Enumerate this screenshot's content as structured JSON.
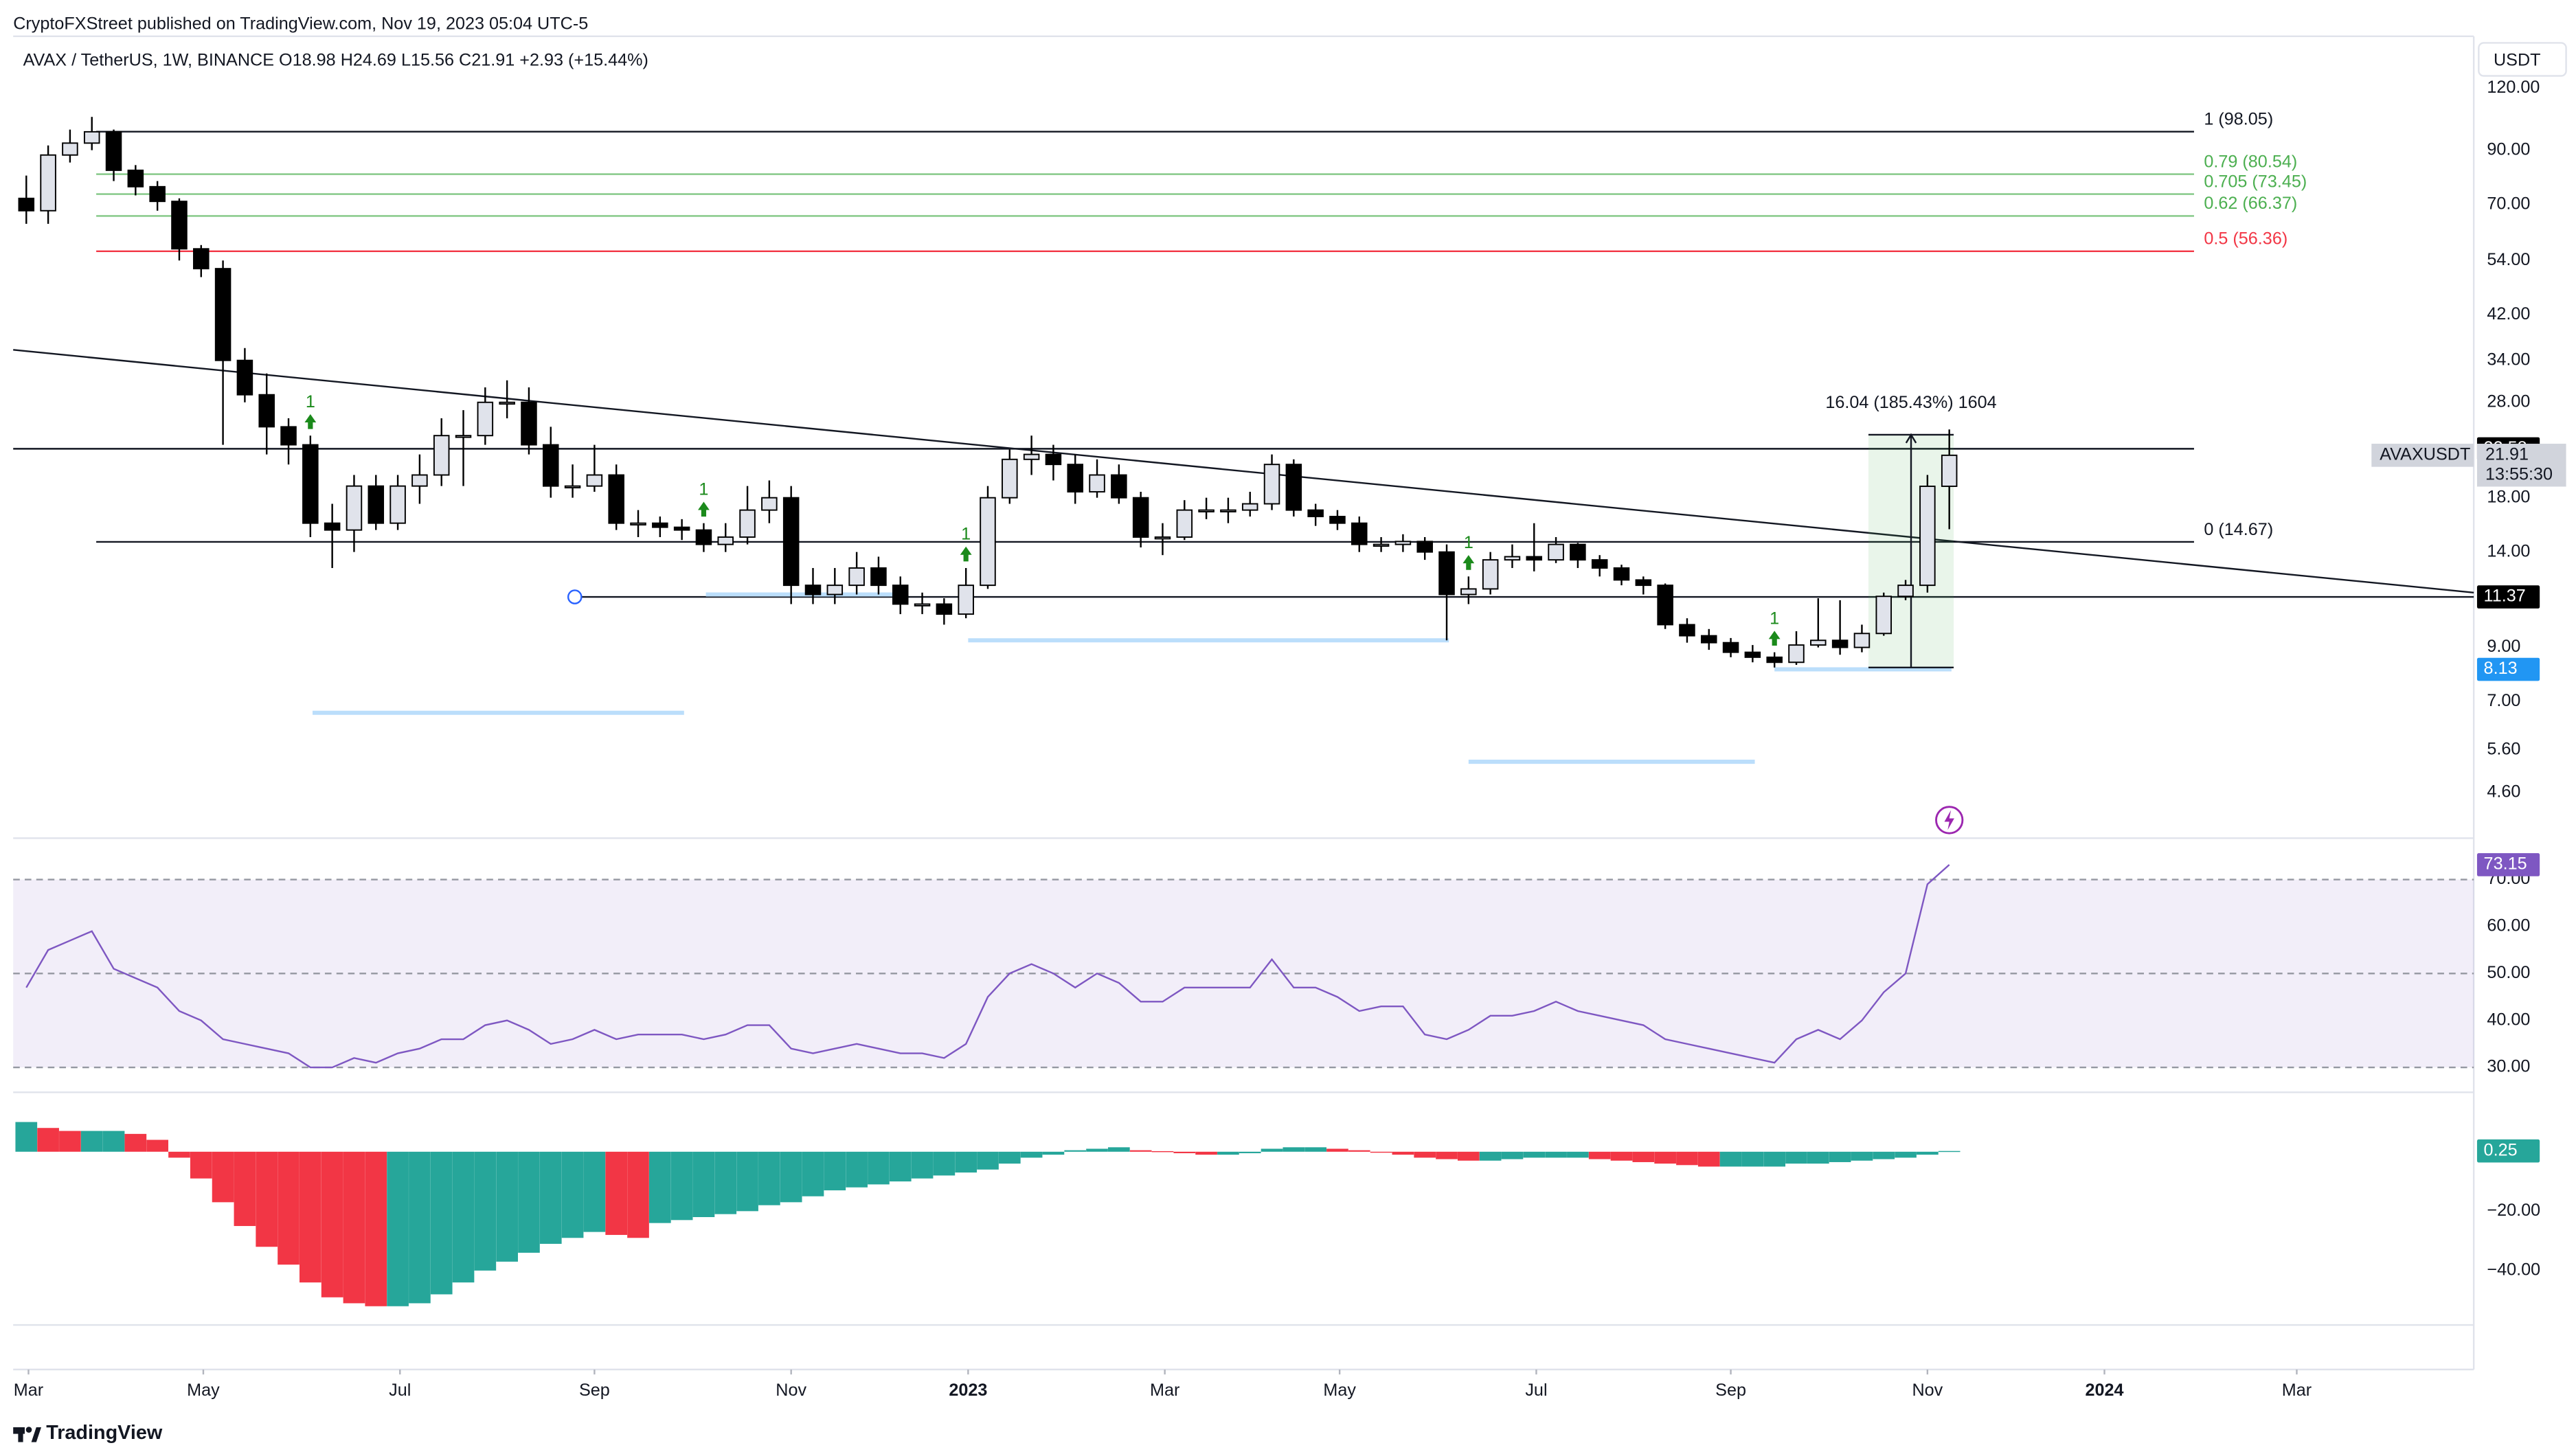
{
  "header": "CryptoFXStreet published on TradingView.com, Nov 19, 2023 05:04 UTC-5",
  "footer": "TradingView",
  "chart_data": [
    {
      "type": "candlestick",
      "title": "AVAX / TetherUS, 1W, BINANCE  O18.98  H24.69  L15.56  C21.91  +2.93 (+15.44%)",
      "currency": "USDT",
      "log_scale": true,
      "up_color": "#e0e3eb",
      "down_color": "#000000",
      "open": [
        72,
        68,
        88,
        93,
        98,
        82,
        76,
        71,
        57,
        52,
        34,
        29,
        25,
        23,
        16,
        15.5,
        19,
        16,
        19,
        20,
        24,
        24,
        28,
        28,
        23,
        19,
        19,
        20,
        16,
        16,
        15.7,
        15.5,
        14.5,
        15,
        17,
        18,
        12,
        11.5,
        12,
        13,
        12,
        11,
        11,
        10.5,
        12,
        18,
        21.5,
        22,
        21,
        18.5,
        20,
        18,
        15,
        15,
        17,
        17,
        17,
        17.5,
        21,
        17,
        16.5,
        16,
        14.5,
        14.5,
        14.7,
        14,
        11.5,
        11.8,
        13.5,
        13.7,
        13.5,
        14.5,
        13.5,
        13,
        12.3,
        12,
        10,
        9.5,
        9.2,
        8.8,
        8.6,
        8.4,
        9.1,
        9.3,
        9.0,
        9.6,
        11.4,
        12,
        18.98
      ],
      "high": [
        80,
        92,
        99,
        105,
        99,
        84,
        78,
        72,
        58,
        54,
        36,
        32,
        26,
        24,
        17.5,
        20,
        20,
        20,
        22,
        26,
        27,
        30,
        31,
        30,
        25,
        21,
        23,
        21,
        17,
        16.5,
        16.3,
        16,
        16,
        19,
        19.5,
        19,
        13,
        13,
        14,
        13.7,
        12.5,
        11.6,
        11.3,
        13,
        19,
        22.5,
        24,
        23,
        22,
        21.5,
        21,
        18.5,
        16,
        17.8,
        18,
        18,
        18.5,
        22,
        21.5,
        17.5,
        17,
        16.5,
        15,
        15.2,
        15,
        14.5,
        12.5,
        14,
        14.5,
        16,
        15,
        14.6,
        13.8,
        13.2,
        12.5,
        12.1,
        10.3,
        9.8,
        9.4,
        9.1,
        8.8,
        9.7,
        11.3,
        11.2,
        10,
        11.6,
        12.3,
        20,
        24.69
      ],
      "low": [
        64,
        64,
        85,
        90,
        78,
        73,
        68,
        54,
        50,
        23,
        28,
        22,
        21,
        15,
        13,
        14,
        15.5,
        15.5,
        17.5,
        19,
        19,
        23,
        26,
        22,
        18,
        18,
        18.5,
        15.5,
        15,
        15,
        14.8,
        14,
        14,
        14.5,
        16,
        11,
        11,
        11,
        11.5,
        11.5,
        10.5,
        10.5,
        10,
        10.3,
        11.8,
        17.5,
        20,
        19.5,
        17.5,
        18,
        17.5,
        14.3,
        13.8,
        14.8,
        16.3,
        16,
        16.5,
        17,
        16.5,
        15.8,
        15.5,
        14,
        14,
        14,
        13.5,
        9.3,
        11,
        11.5,
        13,
        12.8,
        13.3,
        13,
        12.5,
        12,
        11.5,
        9.8,
        9.2,
        8.9,
        8.6,
        8.4,
        8.2,
        8.3,
        9,
        8.7,
        8.8,
        9.5,
        11.2,
        11.6,
        15.56
      ],
      "close": [
        68,
        88,
        93,
        98,
        82,
        76,
        71,
        57,
        52,
        34,
        29,
        25,
        23,
        16,
        15.5,
        19,
        16,
        19,
        20,
        24,
        24,
        28,
        28,
        23,
        19,
        19,
        20,
        16,
        16,
        15.7,
        15.5,
        14.5,
        15,
        17,
        18,
        12,
        11.5,
        12,
        13,
        12,
        11,
        11,
        10.5,
        12,
        18,
        21.5,
        22,
        21,
        18.5,
        20,
        18,
        15,
        15,
        17,
        17,
        17,
        17.5,
        21,
        17,
        16.5,
        16,
        14.5,
        14.5,
        14.7,
        14,
        11.5,
        11.8,
        13.5,
        13.7,
        13.5,
        14.5,
        13.5,
        13,
        12.3,
        12,
        10,
        9.5,
        9.2,
        8.8,
        8.6,
        8.4,
        9.1,
        9.3,
        9.0,
        9.6,
        11.4,
        12,
        18.98,
        21.91
      ],
      "xlim": [
        -0.6,
        112
      ],
      "ylim": [
        3.72,
        152.5
      ],
      "xticks": [
        {
          "value": 0.1,
          "label": "Mar"
        },
        {
          "value": 8.1,
          "label": "May"
        },
        {
          "value": 17.1,
          "label": "Jul"
        },
        {
          "value": 26.0,
          "label": "Sep"
        },
        {
          "value": 35.0,
          "label": "Nov"
        },
        {
          "value": 43.1,
          "label": "2023"
        },
        {
          "value": 52.1,
          "label": "Mar"
        },
        {
          "value": 60.1,
          "label": "May"
        },
        {
          "value": 69.1,
          "label": "Jul"
        },
        {
          "value": 78.0,
          "label": "Sep"
        },
        {
          "value": 87.0,
          "label": "Nov"
        },
        {
          "value": 95.1,
          "label": "2024"
        },
        {
          "value": 103.9,
          "label": "Mar"
        }
      ],
      "yticks": [
        {
          "value": 120,
          "label": "120.00"
        },
        {
          "value": 90,
          "label": "90.00"
        },
        {
          "value": 70,
          "label": "70.00"
        },
        {
          "value": 54,
          "label": "54.00"
        },
        {
          "value": 42,
          "label": "42.00"
        },
        {
          "value": 34,
          "label": "34.00"
        },
        {
          "value": 28,
          "label": "28.00"
        },
        {
          "value": 18,
          "label": "18.00"
        },
        {
          "value": 14,
          "label": "14.00"
        },
        {
          "value": 9,
          "label": "9.00"
        },
        {
          "value": 7,
          "label": "7.00"
        },
        {
          "value": 5.6,
          "label": "5.60"
        },
        {
          "value": 4.6,
          "label": "4.60"
        }
      ],
      "fib": [
        {
          "label": "1 (98.05)",
          "value": 98.05,
          "color": "#131722"
        },
        {
          "label": "0.79 (80.54)",
          "value": 80.54,
          "color": "#4caf50"
        },
        {
          "label": "0.705 (73.45)",
          "value": 73.45,
          "color": "#4caf50"
        },
        {
          "label": "0.62 (66.37)",
          "value": 66.37,
          "color": "#4caf50"
        },
        {
          "label": "0.5 (56.36)",
          "value": 56.36,
          "color": "#f23645"
        },
        {
          "label": "0 (14.67)",
          "value": 14.67,
          "color": "#131722"
        }
      ],
      "fib_x": [
        3.2,
        99.2
      ],
      "lines": [
        {
          "x": [
            -0.6,
            112
          ],
          "y": [
            35.7,
            11.6
          ],
          "color": "#131722",
          "width": 1
        },
        {
          "x": [
            -0.6,
            99.2
          ],
          "y": [
            22.58,
            22.58
          ],
          "color": "#131722",
          "width": 1
        },
        {
          "x": [
            25.1,
            112
          ],
          "y": [
            11.37,
            11.37
          ],
          "color": "#131722",
          "width": 1,
          "handle": true
        },
        {
          "x": [
            13.1,
            30.1
          ],
          "y": [
            6.65,
            6.65
          ],
          "color": "#bbdefb",
          "width": 2.5
        },
        {
          "x": [
            31.1,
            40.2
          ],
          "y": [
            11.5,
            11.5
          ],
          "color": "#bbdefb",
          "width": 2.5
        },
        {
          "x": [
            43.1,
            65.1
          ],
          "y": [
            9.3,
            9.3
          ],
          "color": "#bbdefb",
          "width": 2.5
        },
        {
          "x": [
            66.0,
            79.1
          ],
          "y": [
            5.3,
            5.3
          ],
          "color": "#bbdefb",
          "width": 2.5
        },
        {
          "x": [
            80.0,
            88.1
          ],
          "y": [
            8.13,
            8.13
          ],
          "color": "#bbdefb",
          "width": 2.5
        }
      ],
      "tags": [
        {
          "line": 1,
          "color": "#000000"
        },
        {
          "line": 2,
          "color": "#000000"
        },
        {
          "line": 7,
          "color": "#2196f3"
        }
      ],
      "signals": [
        {
          "x": 13,
          "label": "1"
        },
        {
          "x": 31,
          "label": "1"
        },
        {
          "x": 43,
          "label": "1"
        },
        {
          "x": 66,
          "label": "1"
        },
        {
          "x": 80,
          "label": "1"
        }
      ],
      "measure": {
        "label": "16.04 (185.43%) 1604",
        "x": [
          84.3,
          88.2
        ],
        "y": [
          8.2,
          24.1
        ]
      },
      "symbol": "AVAXUSDT",
      "countdown": "13:55:30"
    },
    {
      "type": "line",
      "color": "#7e57c2",
      "values": [
        47,
        55,
        57,
        59,
        51,
        49,
        47,
        42,
        40,
        36,
        35,
        34,
        33,
        30,
        30,
        32,
        31,
        33,
        34,
        36,
        36,
        39,
        40,
        38,
        35,
        36,
        38,
        36,
        37,
        37,
        37,
        36,
        37,
        39,
        39,
        34,
        33,
        34,
        35,
        34,
        33,
        33,
        32,
        35,
        45,
        50,
        52,
        50,
        47,
        50,
        48,
        44,
        44,
        47,
        47,
        47,
        47,
        53,
        47,
        47,
        45,
        42,
        43,
        43,
        37,
        36,
        38,
        41,
        41,
        42,
        44,
        42,
        41,
        40,
        39,
        36,
        35,
        34,
        33,
        32,
        31,
        36,
        38,
        36,
        40,
        46,
        50,
        69,
        73.15
      ],
      "ylim": [
        24.7,
        78.8
      ],
      "yticks": [
        {
          "value": 70,
          "label": "70.00"
        },
        {
          "value": 60,
          "label": "60.00"
        },
        {
          "value": 50,
          "label": "50.00"
        },
        {
          "value": 40,
          "label": "40.00"
        },
        {
          "value": 30,
          "label": "30.00"
        }
      ],
      "hlines": [
        30,
        50,
        70
      ]
    },
    {
      "type": "histogram",
      "up_color": "#26a69a",
      "down_color": "#f23645",
      "values": [
        10,
        8,
        7,
        7,
        7,
        6,
        4,
        -2,
        -9,
        -17,
        -25,
        -32,
        -38,
        -44,
        -49,
        -51,
        -52,
        -52,
        -51,
        -48,
        -44,
        -40,
        -37,
        -34,
        -31,
        -29,
        -27,
        -28,
        -29,
        -24,
        -23,
        -22,
        -21,
        -20,
        -18,
        -17,
        -15,
        -13,
        -12,
        -11,
        -10,
        -9,
        -8,
        -7,
        -6,
        -4,
        -2,
        -1,
        0.5,
        1,
        1.5,
        0.5,
        0.2,
        -0.5,
        -1,
        -1,
        -0.5,
        1,
        1.5,
        1.5,
        1,
        0.5,
        0,
        -1,
        -2,
        -2.5,
        -3,
        -3,
        -2.5,
        -2,
        -2,
        -2,
        -2.5,
        -3,
        -3.5,
        -4,
        -4.5,
        -5,
        -5,
        -5,
        -5,
        -4,
        -4,
        -3.5,
        -3,
        -2.5,
        -2,
        -1,
        0.25
      ],
      "ylim": [
        -58.3,
        20
      ],
      "yticks": [
        {
          "value": -20,
          "label": "−20.00"
        },
        {
          "value": -40,
          "label": "−40.00"
        }
      ]
    }
  ]
}
